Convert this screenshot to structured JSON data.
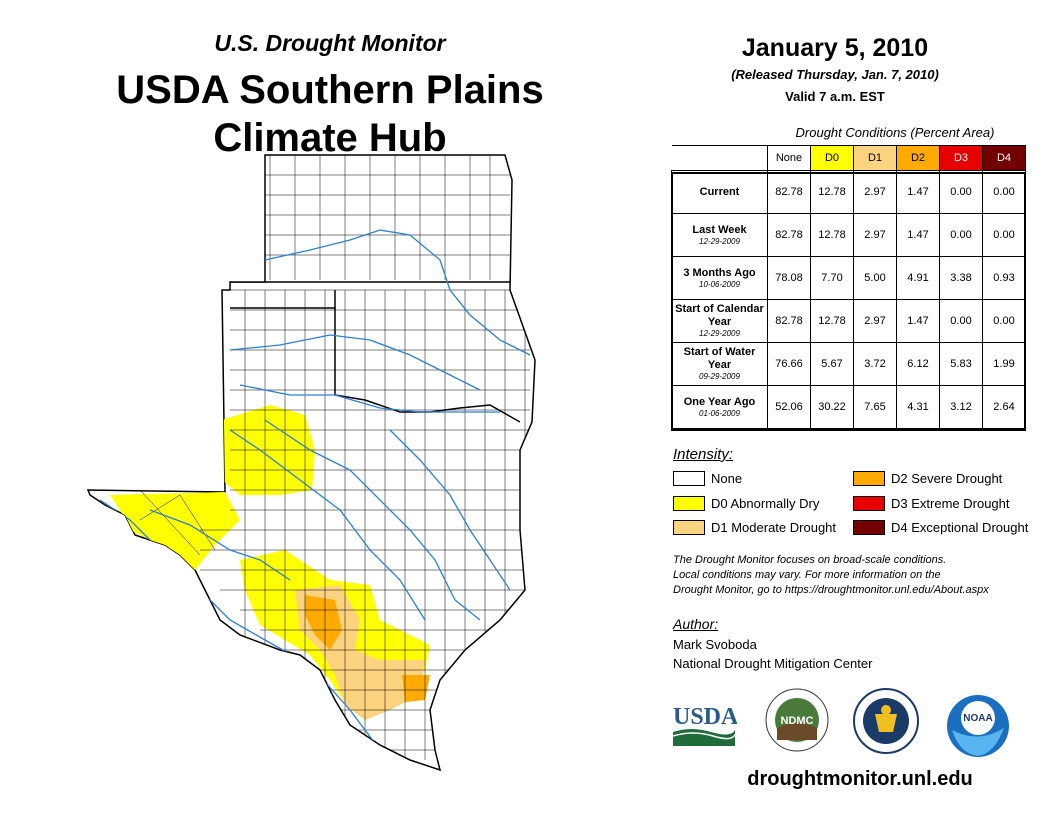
{
  "header": {
    "subtitle": "U.S. Drought Monitor",
    "title_line1": "USDA Southern Plains",
    "title_line2": "Climate Hub"
  },
  "release": {
    "date": "January 5, 2010",
    "released": "(Released Thursday, Jan. 7, 2010)",
    "valid": "Valid 7 a.m. EST"
  },
  "table": {
    "title": "Drought Conditions (Percent Area)",
    "columns": [
      "None",
      "D0",
      "D1",
      "D2",
      "D3",
      "D4"
    ],
    "column_colors": [
      "#ffffff",
      "#ffff00",
      "#fcd37f",
      "#ffaa00",
      "#e60000",
      "#730000"
    ],
    "rows": [
      {
        "label": "Current",
        "date": "",
        "values": [
          "82.78",
          "12.78",
          "2.97",
          "1.47",
          "0.00",
          "0.00"
        ]
      },
      {
        "label": "Last Week",
        "date": "12-29-2009",
        "values": [
          "82.78",
          "12.78",
          "2.97",
          "1.47",
          "0.00",
          "0.00"
        ]
      },
      {
        "label": "3 Months Ago",
        "date": "10-06-2009",
        "values": [
          "78.08",
          "7.70",
          "5.00",
          "4.91",
          "3.38",
          "0.93"
        ]
      },
      {
        "label": "Start of Calendar Year",
        "date": "12-29-2009",
        "values": [
          "82.78",
          "12.78",
          "2.97",
          "1.47",
          "0.00",
          "0.00"
        ]
      },
      {
        "label": "Start of Water Year",
        "date": "09-29-2009",
        "values": [
          "76.66",
          "5.67",
          "3.72",
          "6.12",
          "5.83",
          "1.99"
        ]
      },
      {
        "label": "One Year Ago",
        "date": "01-06-2009",
        "values": [
          "52.06",
          "30.22",
          "7.65",
          "4.31",
          "3.12",
          "2.64"
        ]
      }
    ]
  },
  "legend": {
    "title": "Intensity:",
    "items": [
      {
        "label": "None",
        "color": "#ffffff"
      },
      {
        "label": "D0 Abnormally Dry",
        "color": "#ffff00"
      },
      {
        "label": "D1 Moderate Drought",
        "color": "#fcd37f"
      },
      {
        "label": "D2 Severe Drought",
        "color": "#ffaa00"
      },
      {
        "label": "D3 Extreme Drought",
        "color": "#e60000"
      },
      {
        "label": "D4 Exceptional Drought",
        "color": "#730000"
      }
    ]
  },
  "note": {
    "line1": "The Drought Monitor focuses on broad-scale conditions.",
    "line2": "Local conditions may vary. For more information on the",
    "line3": "Drought Monitor, go to https://droughtmonitor.unl.edu/About.aspx"
  },
  "author": {
    "title": "Author:",
    "name": "Mark Svoboda",
    "org": "National Drought Mitigation Center"
  },
  "logos": {
    "usda": "USDA",
    "ndmc": "NDMC",
    "noaa": "NOAA"
  },
  "footer": {
    "url": "droughtmonitor.unl.edu"
  }
}
